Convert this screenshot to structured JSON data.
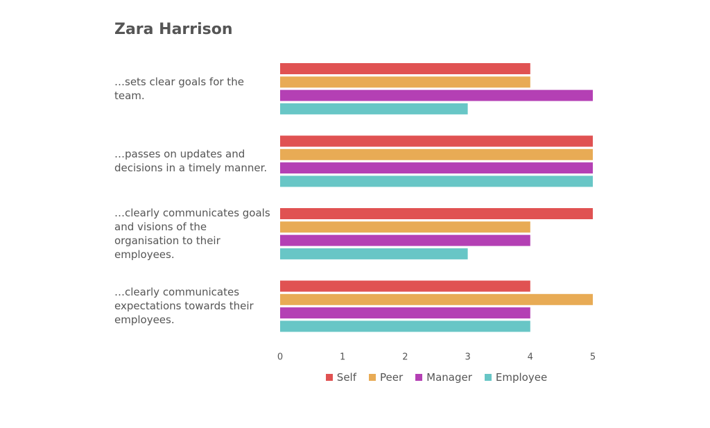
{
  "chart_data": {
    "type": "bar",
    "orientation": "horizontal",
    "title": "Zara Harrison",
    "categories": [
      "…sets clear goals for the team.",
      "…passes on updates and decisions in a timely manner.",
      "…clearly communicates goals and visions of the organisation to their employees.",
      "…clearly communicates expectations towards their employees."
    ],
    "series": [
      {
        "name": "Self",
        "color": "#e05252",
        "values": [
          4,
          5,
          5,
          4
        ]
      },
      {
        "name": "Peer",
        "color": "#e8ab55",
        "values": [
          4,
          5,
          4,
          5
        ]
      },
      {
        "name": "Manager",
        "color": "#b440b4",
        "values": [
          5,
          5,
          4,
          4
        ]
      },
      {
        "name": "Employee",
        "color": "#68c6c6",
        "values": [
          3,
          5,
          3,
          4
        ]
      }
    ],
    "xlim": [
      0,
      5
    ],
    "xticks": [
      0,
      1,
      2,
      3,
      4,
      5
    ],
    "grid": false,
    "legend": "bottom"
  }
}
